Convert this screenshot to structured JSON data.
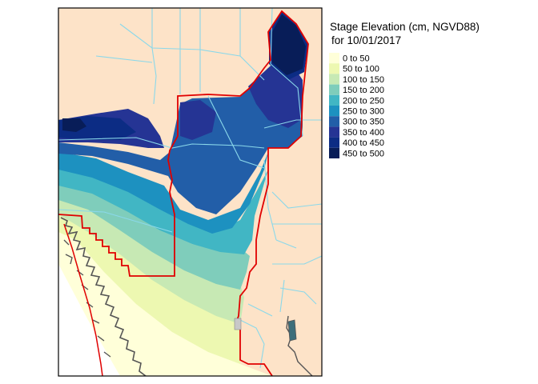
{
  "legend": {
    "title": "Stage Elevation (cm, NGVD88)",
    "subtitle": "for 10/01/2017",
    "classes": [
      {
        "label": "0 to 50",
        "color": "#ffffd9"
      },
      {
        "label": "50 to 100",
        "color": "#edf8b1"
      },
      {
        "label": "100 to 150",
        "color": "#c7e9b4"
      },
      {
        "label": "150 to 200",
        "color": "#7fcdbb"
      },
      {
        "label": "200 to 250",
        "color": "#41b6c4"
      },
      {
        "label": "250 to 300",
        "color": "#1d91c0"
      },
      {
        "label": "300 to 350",
        "color": "#225ea8"
      },
      {
        "label": "350 to 400",
        "color": "#253494"
      },
      {
        "label": "400 to 450",
        "color": "#0c2c84"
      },
      {
        "label": "450 to 500",
        "color": "#081d58"
      }
    ]
  },
  "colors": {
    "land": "#fde3c8",
    "water_boundary": "#ff0000",
    "canals": "#8ad8ea",
    "coastline": "#555555",
    "frame": "#000000"
  }
}
